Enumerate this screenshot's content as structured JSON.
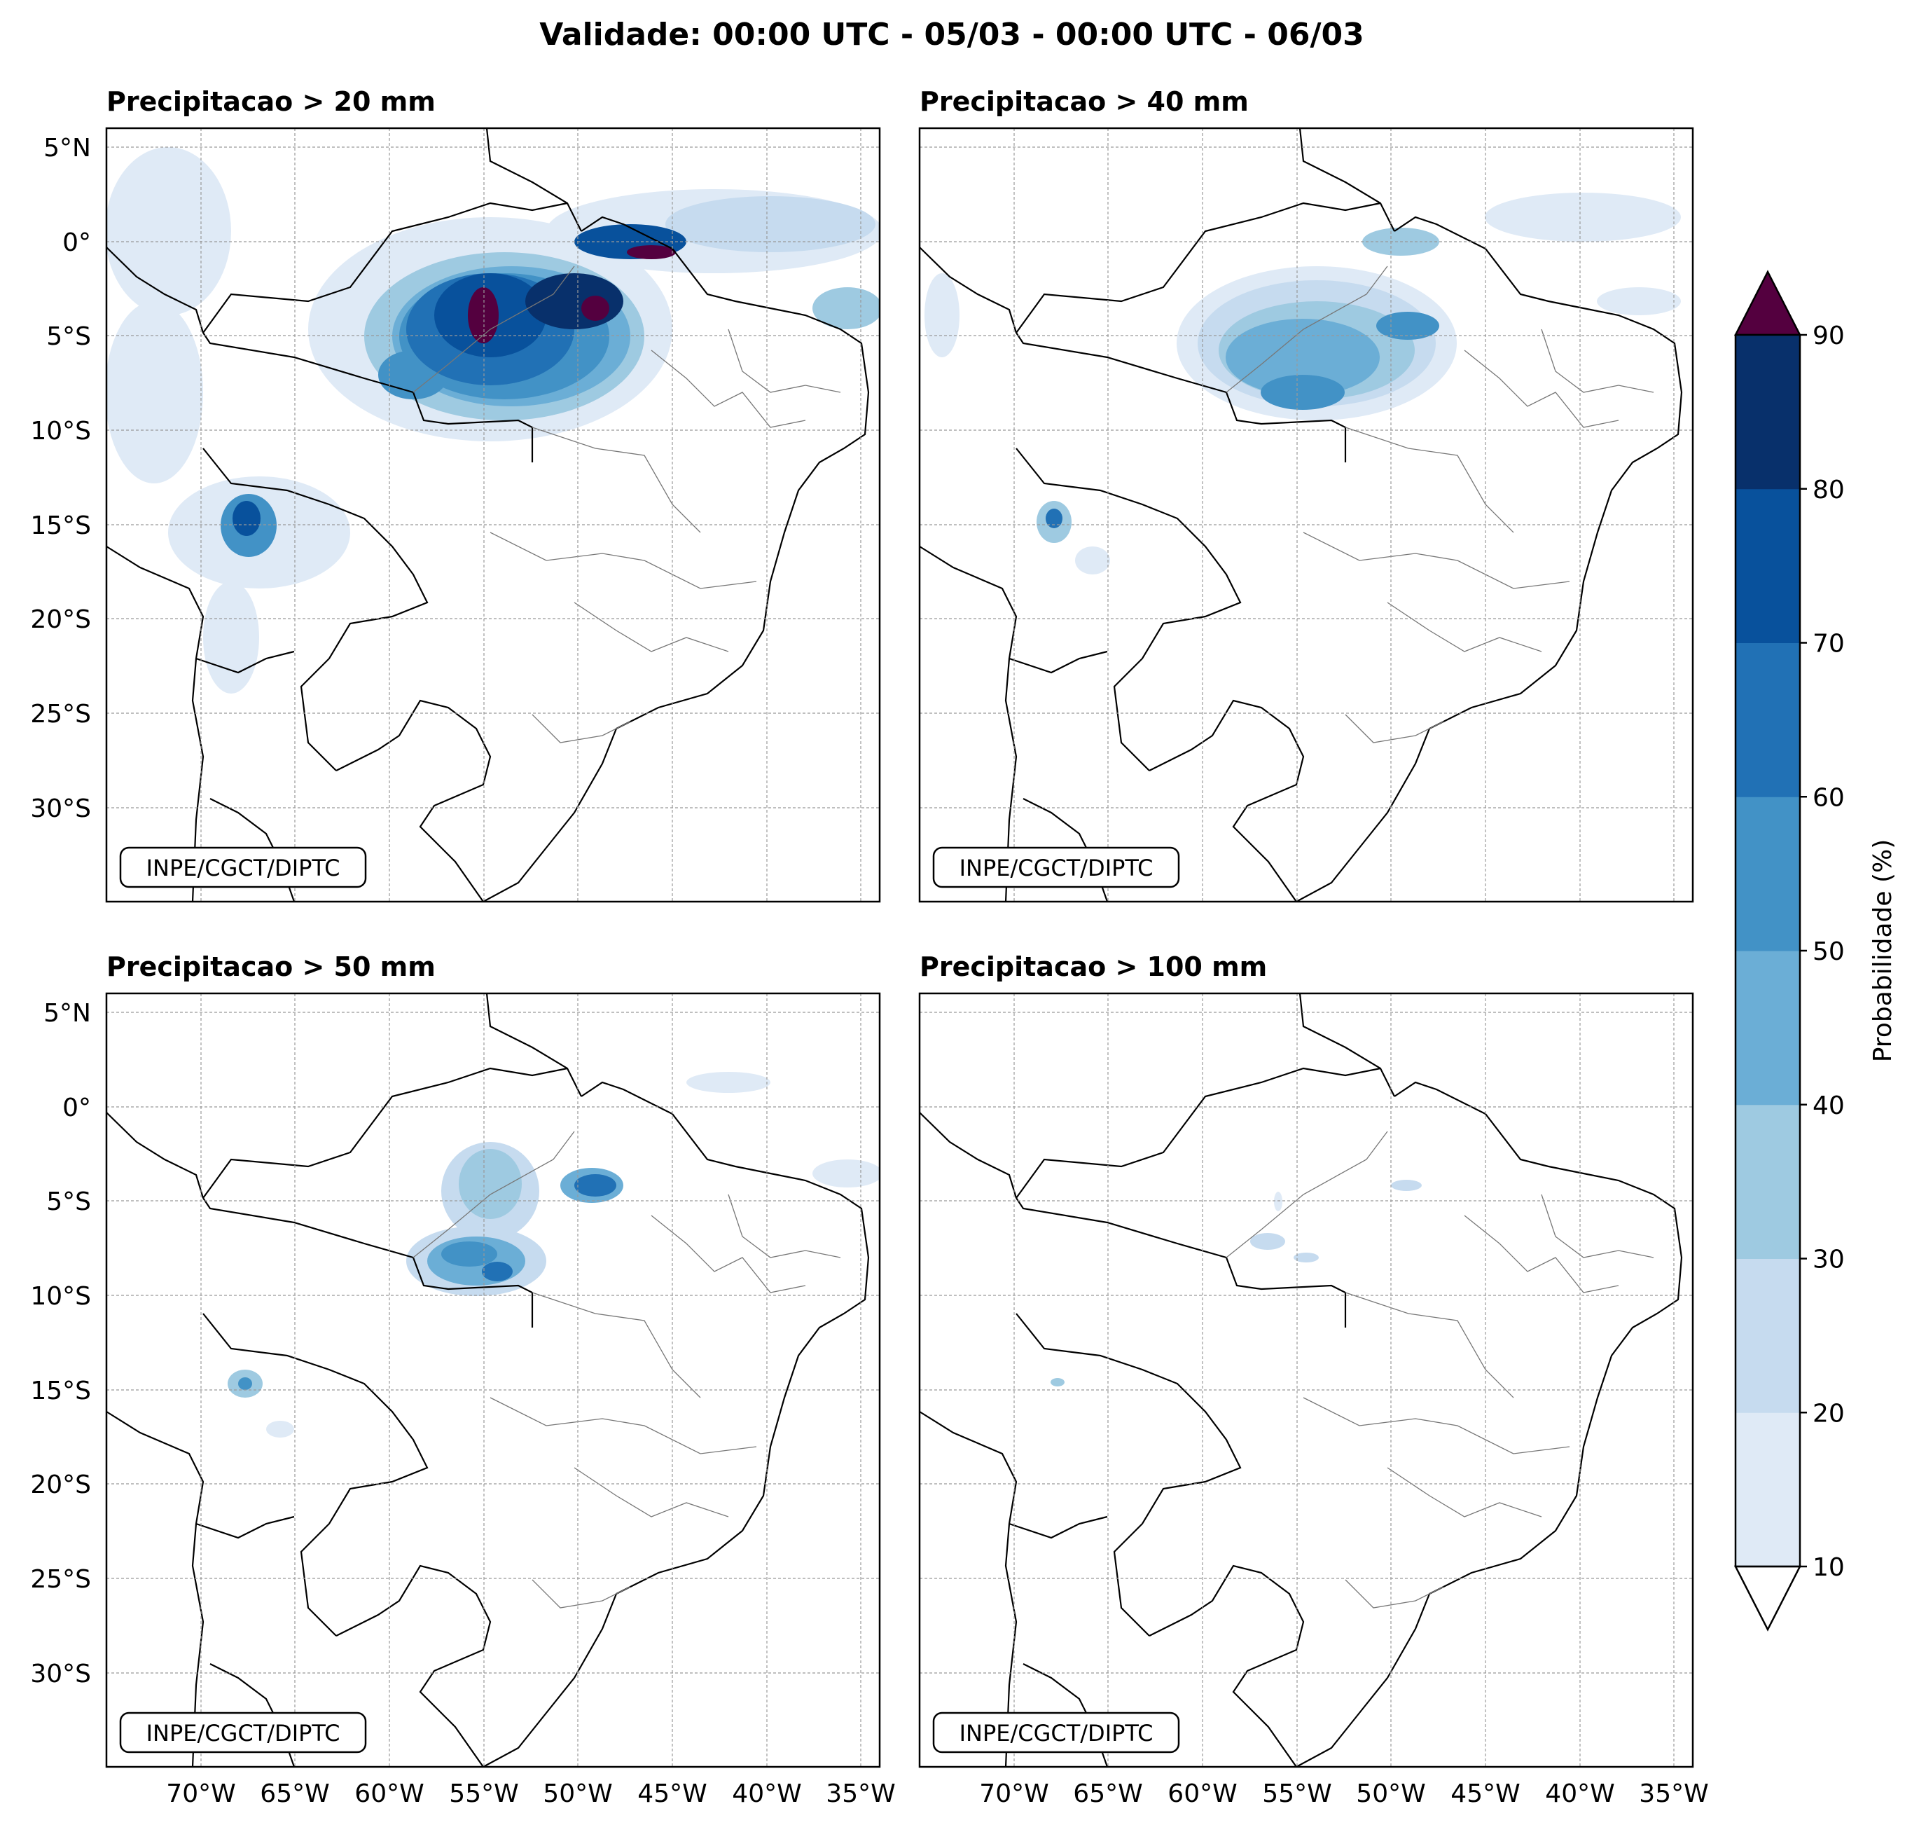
{
  "figure": {
    "title": "Validade: 00:00 UTC - 05/03 - 00:00 UTC - 06/03"
  },
  "panels": [
    {
      "title": "Precipitacao > 20 mm",
      "credit": "INPE/CGCT/DIPTC"
    },
    {
      "title": "Precipitacao > 40 mm",
      "credit": "INPE/CGCT/DIPTC"
    },
    {
      "title": "Precipitacao > 50 mm",
      "credit": "INPE/CGCT/DIPTC"
    },
    {
      "title": "Precipitacao > 100 mm",
      "credit": "INPE/CGCT/DIPTC"
    }
  ],
  "axes": {
    "lon_ticks": [
      "70°W",
      "65°W",
      "60°W",
      "55°W",
      "50°W",
      "45°W",
      "40°W",
      "35°W"
    ],
    "lat_ticks": [
      "5°N",
      "0°",
      "5°S",
      "10°S",
      "15°S",
      "20°S",
      "25°S",
      "30°S"
    ],
    "lon_range": [
      -75,
      -34
    ],
    "lat_range": [
      -35,
      6
    ]
  },
  "colorbar": {
    "label": "Probabilidade (%)",
    "ticks": [
      "10",
      "20",
      "30",
      "40",
      "50",
      "60",
      "70",
      "80",
      "90"
    ],
    "colors": [
      "#dfeaf6",
      "#c6dbef",
      "#9ecae1",
      "#6baed6",
      "#4292c6",
      "#2171b5",
      "#08519c",
      "#08306b"
    ],
    "over_color": "#54003f",
    "under_color": "#ffffff"
  }
}
